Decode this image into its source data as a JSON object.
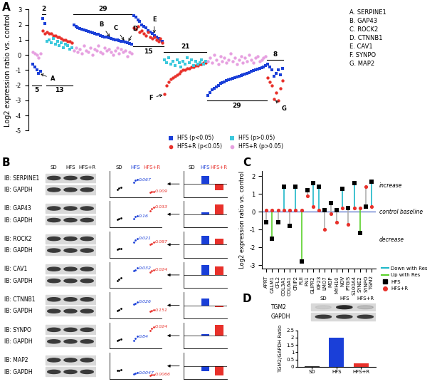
{
  "chart_data": [
    {
      "panel": "A",
      "type": "scatter",
      "y_label": "Log2 expression ratio vs. control",
      "xlim": [
        -2,
        124
      ],
      "ylim": [
        -5,
        3
      ],
      "yticks": [
        -5,
        -4,
        -3,
        -2,
        -1,
        0,
        1,
        2,
        3
      ],
      "tick_labels": "y",
      "legend": "lower right",
      "series": [
        {
          "name": "HFS (p<0.05)",
          "color": "#1a3fd8",
          "marker": "square",
          "x": [
            0,
            1,
            2,
            3,
            4,
            5,
            6,
            20,
            21,
            22,
            23,
            24,
            25,
            26,
            27,
            28,
            29,
            30,
            31,
            32,
            33,
            34,
            35,
            36,
            37,
            38,
            39,
            40,
            41,
            42,
            43,
            44,
            45,
            46,
            47,
            48,
            49,
            50,
            51,
            52,
            53,
            54,
            55,
            56,
            57,
            58,
            59,
            60,
            61,
            62,
            63,
            85,
            86,
            87,
            88,
            89,
            90,
            91,
            92,
            93,
            94,
            95,
            96,
            97,
            98,
            99,
            100,
            101,
            102,
            103,
            104,
            105,
            106,
            107,
            108,
            109,
            110,
            111,
            112,
            113,
            114,
            115,
            116,
            117,
            118,
            119,
            120,
            121
          ],
          "values": [
            -0.6,
            -0.8,
            -1.0,
            -1.2,
            -1.1,
            2.4,
            2.1,
            2.0,
            1.9,
            1.8,
            1.75,
            1.7,
            1.65,
            1.6,
            1.55,
            1.5,
            1.45,
            1.4,
            1.38,
            1.35,
            1.3,
            1.25,
            1.2,
            1.18,
            1.15,
            1.1,
            1.05,
            1.0,
            0.98,
            0.95,
            0.9,
            0.88,
            0.85,
            0.8,
            0.75,
            0.7,
            2.6,
            2.5,
            2.3,
            2.2,
            2.0,
            1.9,
            1.8,
            1.6,
            1.5,
            1.4,
            1.3,
            1.2,
            1.1,
            1.0,
            0.9,
            -2.7,
            -2.5,
            -2.3,
            -2.2,
            -2.1,
            -2.0,
            -1.9,
            -1.85,
            -1.8,
            -1.7,
            -1.65,
            -1.6,
            -1.55,
            -1.5,
            -1.45,
            -1.4,
            -1.35,
            -1.3,
            -1.25,
            -1.2,
            -1.15,
            -1.1,
            -1.05,
            -1.0,
            -0.95,
            -0.9,
            -0.85,
            -0.8,
            -0.7,
            -0.6,
            -0.8,
            -1.0,
            -1.4,
            -1.2,
            -1.0,
            -1.3,
            -0.9
          ]
        },
        {
          "name": "HFS+R (p<0.05)",
          "color": "#e8302a",
          "marker": "circle",
          "x": [
            5,
            6,
            7,
            8,
            9,
            10,
            11,
            12,
            13,
            14,
            15,
            16,
            17,
            18,
            19,
            49,
            50,
            51,
            52,
            53,
            54,
            55,
            56,
            57,
            58,
            59,
            60,
            61,
            62,
            63,
            64,
            65,
            66,
            67,
            68,
            69,
            70,
            71,
            72,
            73,
            74,
            75,
            76,
            77,
            78,
            79,
            80,
            81,
            82,
            83,
            84,
            114,
            115,
            116,
            117,
            118,
            119,
            120,
            121
          ],
          "values": [
            1.6,
            1.4,
            1.5,
            1.4,
            1.4,
            1.3,
            1.3,
            1.2,
            1.2,
            1.1,
            1.0,
            1.0,
            0.9,
            0.9,
            0.8,
            1.8,
            1.7,
            1.9,
            1.5,
            1.6,
            1.4,
            1.3,
            1.5,
            1.2,
            1.1,
            1.2,
            1.0,
            0.9,
            1.1,
            0.8,
            -2.6,
            -2.0,
            -1.8,
            -1.6,
            -1.5,
            -1.4,
            -1.3,
            -1.2,
            -1.1,
            -1.0,
            -1.0,
            -0.9,
            -0.9,
            -0.8,
            -0.8,
            -0.7,
            -0.7,
            -0.6,
            -0.6,
            -0.5,
            -0.5,
            -1.5,
            -1.8,
            -2.0,
            -2.9,
            -2.5,
            -3.0,
            -2.2,
            -1.7
          ]
        },
        {
          "name": "HFS (p>0.05)",
          "color": "#3cc8dc",
          "marker": "square",
          "x": [
            7,
            8,
            9,
            10,
            11,
            12,
            13,
            14,
            15,
            16,
            17,
            18,
            19,
            64,
            65,
            66,
            67,
            68,
            69,
            70,
            71,
            72,
            73,
            74,
            75,
            76,
            77,
            78,
            79,
            80,
            81,
            82,
            83,
            84
          ],
          "values": [
            0.9,
            1.0,
            0.8,
            1.1,
            0.7,
            0.9,
            0.6,
            0.8,
            0.5,
            0.7,
            0.6,
            0.4,
            0.5,
            -0.3,
            -0.5,
            -0.2,
            -0.6,
            -0.4,
            -0.7,
            -0.3,
            -0.5,
            -0.8,
            -0.4,
            -0.6,
            -0.2,
            -0.5,
            -0.3,
            -0.7,
            -0.4,
            -0.6,
            -0.5,
            -0.3,
            -0.6,
            -0.4
          ]
        },
        {
          "name": "HFS+R (p>0.05)",
          "color": "#e6a0e0",
          "marker": "circle",
          "x": [
            0,
            1,
            2,
            3,
            4,
            20,
            21,
            22,
            23,
            24,
            25,
            26,
            27,
            28,
            29,
            30,
            31,
            32,
            33,
            34,
            35,
            36,
            37,
            38,
            39,
            40,
            41,
            42,
            43,
            44,
            45,
            46,
            47,
            48,
            85,
            86,
            87,
            88,
            89,
            90,
            91,
            92,
            93,
            94,
            95,
            96,
            97,
            98,
            99,
            100,
            101,
            102,
            103,
            104,
            105,
            106,
            107,
            108,
            109,
            110,
            111,
            112,
            113
          ],
          "values": [
            0.2,
            0.1,
            0.0,
            -0.2,
            0.1,
            0.3,
            0.5,
            0.2,
            0.4,
            0.1,
            0.6,
            0.3,
            0.2,
            0.5,
            0.0,
            0.4,
            0.3,
            0.6,
            0.2,
            0.1,
            0.5,
            0.3,
            0.4,
            0.2,
            0.0,
            0.3,
            0.5,
            0.1,
            0.4,
            0.2,
            0.3,
            -0.1,
            0.2,
            0.1,
            -0.4,
            -0.2,
            -0.5,
            0.0,
            -0.3,
            -0.6,
            -0.1,
            -0.4,
            -0.2,
            -0.5,
            -0.3,
            0.1,
            -0.4,
            -0.2,
            -0.6,
            -0.3,
            -0.1,
            -0.5,
            -0.2,
            -0.4,
            0.0,
            -0.3,
            -0.5,
            -0.2,
            -0.1,
            -0.4,
            -0.3,
            -0.2,
            -0.1
          ]
        }
      ],
      "groups": [
        {
          "label": "5",
          "start": 0,
          "end": 4,
          "y": -2.0
        },
        {
          "label": "2",
          "start": 5,
          "end": 6,
          "y": 2.7
        },
        {
          "label": "13",
          "start": 7,
          "end": 19,
          "y": -2.0
        },
        {
          "label": "29",
          "start": 20,
          "end": 48,
          "y": 2.7
        },
        {
          "label": "15",
          "start": 49,
          "end": 63,
          "y": 0.55
        },
        {
          "label": "21",
          "start": 64,
          "end": 84,
          "y": 0.2
        },
        {
          "label": "29",
          "start": 85,
          "end": 113,
          "y": -3.0
        },
        {
          "label": "8",
          "start": 114,
          "end": 121,
          "y": -0.3
        }
      ],
      "annotations": [
        {
          "text": "A",
          "x": 3,
          "series": "HFS (p<0.05)"
        },
        {
          "text": "B",
          "x": 38,
          "series": "HFS (p<0.05)"
        },
        {
          "text": "C",
          "x": 45,
          "series": "HFS (p<0.05)"
        },
        {
          "text": "D",
          "x": 46,
          "series": "HFS (p<0.05)"
        },
        {
          "text": "E",
          "x": 59,
          "series": "HFS (p<0.05)"
        },
        {
          "text": "F",
          "x": 64,
          "series": "HFS+R (p<0.05)"
        },
        {
          "text": "G",
          "x": 117,
          "series": "HFS+R (p<0.05)"
        }
      ],
      "gene_key": [
        "A. SERPINE1",
        "B. GAP43",
        "C. ROCK2",
        "D. CTNNB1",
        "E. CAV1",
        "F. SYNPO",
        "G. MAP2"
      ]
    },
    {
      "panel": "B",
      "type": "blot_panel",
      "lanes": [
        "SD",
        "HFS",
        "HFS+R"
      ],
      "colors": [
        "#000000",
        "#1a3fd8",
        "#e8302a"
      ],
      "loading_control": "IB: GAPDH",
      "dot_ylim": [
        0,
        3
      ],
      "bar_ylim": [
        -1.5,
        1.5
      ],
      "tick_labels": false,
      "rows": [
        {
          "blot": "IB: SERPINE1",
          "points": [
            [
              0.9,
              1.0,
              1.1
            ],
            [
              1.7,
              1.9,
              2.0
            ],
            [
              0.5,
              0.6,
              0.65
            ]
          ],
          "p_values": [
            null,
            "0.067",
            "0.009"
          ],
          "values": [
            0,
            0.9,
            -0.7
          ]
        },
        {
          "blot": "IB: GAP43",
          "points": [
            [
              0.9,
              1.0,
              1.1
            ],
            [
              1.0,
              1.2,
              1.3
            ],
            [
              1.9,
              2.1,
              2.3
            ]
          ],
          "p_values": [
            null,
            "0.16",
            "0.033"
          ],
          "values": [
            0,
            0.2,
            1.1
          ]
        },
        {
          "blot": "IB: ROCK2",
          "points": [
            [
              0.95,
              1.0,
              1.05
            ],
            [
              1.8,
              2.0,
              2.2
            ],
            [
              1.5,
              1.6,
              1.8
            ]
          ],
          "p_values": [
            null,
            "0.021",
            "0.087"
          ],
          "values": [
            0,
            1.0,
            0.7
          ]
        },
        {
          "blot": "IB: CAV1",
          "points": [
            [
              0.8,
              1.0,
              1.2
            ],
            [
              2.0,
              2.1,
              2.3
            ],
            [
              1.8,
              2.0,
              2.1
            ]
          ],
          "p_values": [
            null,
            "0.032",
            "0.024"
          ],
          "values": [
            0,
            1.1,
            1.0
          ]
        },
        {
          "blot": "IB: CTNNB1",
          "points": [
            [
              0.9,
              1.0,
              1.1
            ],
            [
              1.6,
              1.7,
              1.9
            ],
            [
              0.8,
              0.9,
              0.95
            ]
          ],
          "p_values": [
            null,
            "0.026",
            "0.151"
          ],
          "values": [
            0,
            0.8,
            -0.2
          ]
        },
        {
          "blot": "IB: SYNPO",
          "points": [
            [
              0.9,
              1.0,
              1.1
            ],
            [
              0.9,
              1.2,
              1.4
            ],
            [
              2.1,
              2.3,
              2.5
            ]
          ],
          "p_values": [
            null,
            "0.84",
            "0.024"
          ],
          "values": [
            0,
            0.2,
            1.2
          ]
        },
        {
          "blot": "IB: MAP2",
          "points": [
            [
              0.95,
              1.0,
              1.05
            ],
            [
              0.6,
              0.65,
              0.7
            ],
            [
              0.4,
              0.45,
              0.5
            ]
          ],
          "p_values": [
            null,
            "0.0047",
            "0.0066"
          ],
          "values": [
            0,
            -0.6,
            -1.1
          ]
        }
      ]
    },
    {
      "panel": "C",
      "type": "lollipop",
      "y_label": "Log2 expression ratio vs. control",
      "categories": [
        "APRT",
        "CALM1",
        "CFL2",
        "COL3A1",
        "COL6A1",
        "CRIP2",
        "FLII",
        "FN1",
        "GLIPR2",
        "KIF23",
        "LMO7",
        "MGP",
        "MYH10",
        "NOV",
        "PTGIS",
        "S100A4",
        "SYNE2",
        "SYNPO",
        "TGM2"
      ],
      "series": [
        {
          "name": "HFS",
          "color": "#000000",
          "marker": "square",
          "values": [
            -0.6,
            -1.5,
            -0.6,
            1.4,
            -0.8,
            1.4,
            -2.8,
            1.2,
            1.6,
            1.4,
            0.1,
            0.5,
            0.1,
            1.3,
            0.2,
            1.6,
            -1.2,
            0.3,
            1.7
          ]
        },
        {
          "name": "HFS+R",
          "color": "#e8302a",
          "marker": "circle",
          "values": [
            0.1,
            0.1,
            0.1,
            0.1,
            0.1,
            0.1,
            0.1,
            0.9,
            0.3,
            0.1,
            -1.0,
            -0.1,
            -0.6,
            0.2,
            -0.7,
            0.2,
            0.2,
            1.4,
            0.3
          ]
        }
      ],
      "stem_series": [
        {
          "name": "Down with Res",
          "color": "#1fb8c8"
        },
        {
          "name": "Up with Res",
          "color": "#5ad12a"
        }
      ],
      "stems": [
        null,
        "Up with Res",
        null,
        "Down with Res",
        null,
        "Down with Res",
        "Up with Res",
        null,
        "Down with Res",
        "Down with Res",
        null,
        null,
        null,
        "Down with Res",
        null,
        "Down with Res",
        "Up with Res",
        null,
        "Down with Res"
      ],
      "ylim": [
        -3.2,
        2.3
      ],
      "yticks": [
        -3,
        -2,
        -1,
        0,
        1,
        2
      ],
      "side_labels": [
        "increase",
        "control baseline",
        "decrease"
      ],
      "legend": "lower left"
    },
    {
      "panel": "D",
      "type": "bar",
      "blot_labels": [
        "TGM2",
        "GAPDH"
      ],
      "categories": [
        "SD",
        "HFS",
        "HFS+R"
      ],
      "values": [
        0.05,
        2.0,
        0.25
      ],
      "colors": [
        "#333333",
        "#1a3fd8",
        "#e8302a"
      ],
      "y_label": "TGM2/GAPDH Ratio",
      "ylim": [
        0,
        2.5
      ],
      "yticks": [
        0,
        0.5,
        1,
        1.5,
        2,
        2.5
      ]
    }
  ]
}
